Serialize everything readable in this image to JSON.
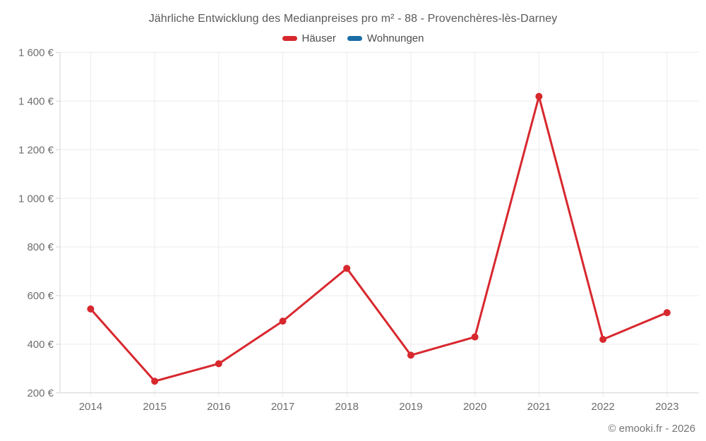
{
  "page": {
    "footer": "© emooki.fr - 2026",
    "background": "#ffffff"
  },
  "chart_data": {
    "type": "line",
    "title": "Jährliche Entwicklung des Medianpreises pro m² - 88 - Provenchères-lès-Darney",
    "categories": [
      "2014",
      "2015",
      "2016",
      "2017",
      "2018",
      "2019",
      "2020",
      "2021",
      "2022",
      "2023"
    ],
    "series": [
      {
        "name": "Häuser",
        "color": "#d7282e",
        "values": [
          545,
          248,
          320,
          495,
          712,
          355,
          430,
          1419,
          420,
          530
        ]
      },
      {
        "name": "Wohnungen",
        "color": "#1a6da6",
        "values": []
      }
    ],
    "xlabel": "",
    "ylabel": "",
    "ylim": [
      200,
      1600
    ],
    "ytick_step": 200,
    "ytick_suffix": " €",
    "grid": true,
    "legend_position": "top",
    "colors": {
      "grid": "#ebebeb",
      "axis": "#d4d4d4",
      "tick_text": "#6e6e6e",
      "title_text": "#595959",
      "legend_text": "#4d4d4d",
      "footer_text": "#757575"
    }
  }
}
